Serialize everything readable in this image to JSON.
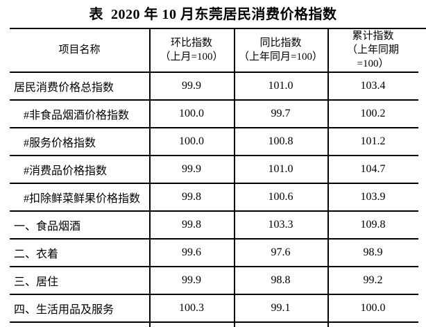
{
  "page": {
    "background_color": "#ffffff",
    "text_color": "#000000",
    "border_color": "#000000"
  },
  "title": "表  2020 年 10 月东莞居民消费价格指数",
  "table": {
    "columns": {
      "item": "项目名称",
      "mom": "环比指数\n（上月=100）",
      "yoy": "同比指数\n（上年同月=100）",
      "cumulative": "累计指数\n（上年同期\n=100）"
    },
    "rows": [
      {
        "name": "居民消费价格总指数",
        "indent": false,
        "mom": "99.9",
        "yoy": "101.0",
        "cumulative": "103.4"
      },
      {
        "name": "#非食品烟酒价格指数",
        "indent": true,
        "mom": "100.0",
        "yoy": "99.7",
        "cumulative": "100.2"
      },
      {
        "name": "#服务价格指数",
        "indent": true,
        "mom": "100.0",
        "yoy": "100.8",
        "cumulative": "101.2"
      },
      {
        "name": "#消费品价格指数",
        "indent": true,
        "mom": "99.9",
        "yoy": "101.0",
        "cumulative": "104.7"
      },
      {
        "name": "#扣除鲜菜鲜果价格指数",
        "indent": true,
        "mom": "99.8",
        "yoy": "100.6",
        "cumulative": "103.9"
      },
      {
        "name": "一、食品烟酒",
        "indent": false,
        "mom": "99.8",
        "yoy": "103.3",
        "cumulative": "109.8"
      },
      {
        "name": "二、衣着",
        "indent": false,
        "mom": "99.6",
        "yoy": "97.6",
        "cumulative": "98.9"
      },
      {
        "name": "三、居住",
        "indent": false,
        "mom": "99.9",
        "yoy": "98.8",
        "cumulative": "99.2"
      },
      {
        "name": "四、生活用品及服务",
        "indent": false,
        "mom": "100.3",
        "yoy": "99.1",
        "cumulative": "100.0"
      }
    ]
  }
}
